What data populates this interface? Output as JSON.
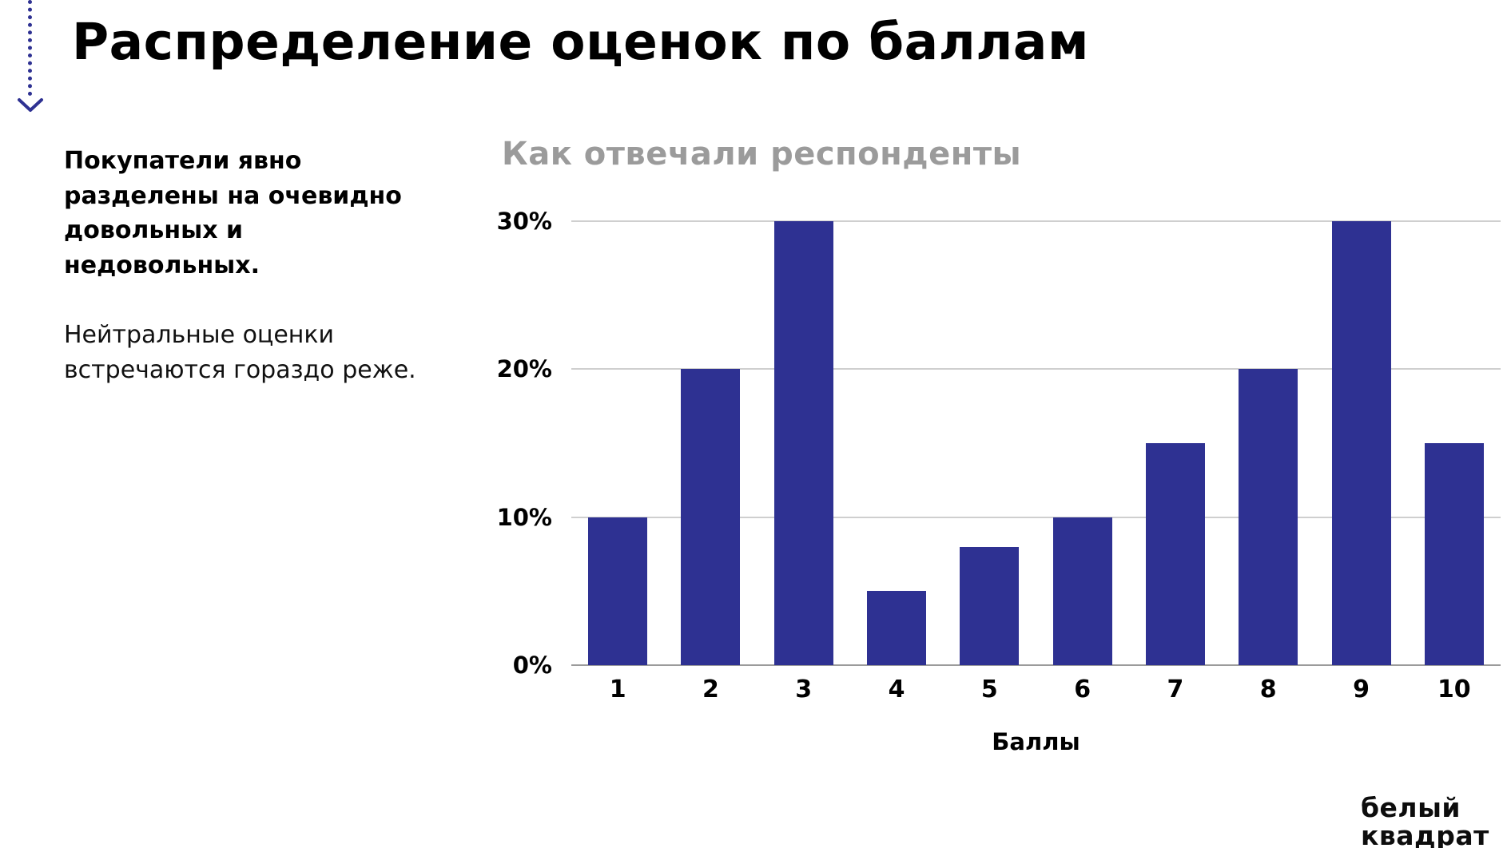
{
  "slide": {
    "title": "Распределение оценок по баллам",
    "insight_bold": "Покупатели явно разделены на очевидно довольных и недовольных.",
    "insight_regular": "Нейтральные оценки встречаются гораздо реже."
  },
  "chart_data": {
    "type": "bar",
    "title": "Как отвечали респонденты",
    "categories": [
      "1",
      "2",
      "3",
      "4",
      "5",
      "6",
      "7",
      "8",
      "9",
      "10"
    ],
    "values": [
      10,
      20,
      30,
      5,
      8,
      10,
      15,
      20,
      30,
      15
    ],
    "xlabel": "Баллы",
    "ylabel": "",
    "ylim": [
      0,
      30
    ],
    "yticks": [
      0,
      10,
      20,
      30
    ],
    "ytick_labels": [
      "0%",
      "10%",
      "20%",
      "30%"
    ],
    "bar_color": "#2E3192",
    "grid": true,
    "legend": "none"
  },
  "logo": {
    "line1": "белый",
    "line2": "квадрат"
  },
  "colors": {
    "accent": "#2E3192",
    "chart_title": "#9B9B9B",
    "gridline": "#CFCFCF",
    "axis_line": "#9B9B9B"
  }
}
